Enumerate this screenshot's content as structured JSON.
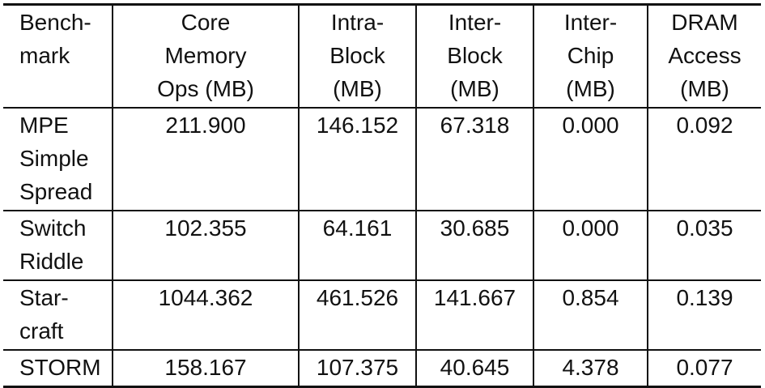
{
  "table": {
    "header": [
      "Bench-\nmark",
      "Core\nMemory\nOps (MB)",
      "Intra-\nBlock\n(MB)",
      "Inter-\nBlock\n(MB)",
      "Inter-\nChip\n(MB)",
      "DRAM\nAccess\n(MB)"
    ],
    "rows": [
      [
        "MPE\nSimple\nSpread",
        "211.900",
        "146.152",
        "67.318",
        "0.000",
        "0.092"
      ],
      [
        "Switch\nRiddle",
        "102.355",
        "64.161",
        "30.685",
        "0.000",
        "0.035"
      ],
      [
        "Star-\ncraft",
        "1044.362",
        "461.526",
        "141.667",
        "0.854",
        "0.139"
      ],
      [
        "STORM",
        "158.167",
        "107.375",
        "40.645",
        "4.378",
        "0.077"
      ]
    ]
  }
}
